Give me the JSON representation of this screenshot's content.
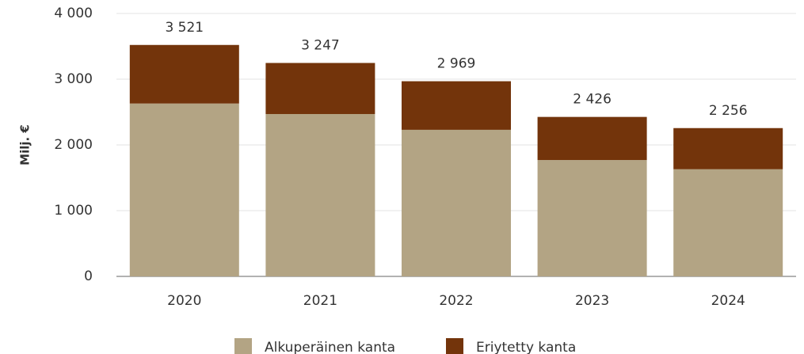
{
  "chart_data": {
    "type": "stacked_bar",
    "y_label": "Milj. €",
    "categories": [
      "2020",
      "2021",
      "2022",
      "2023",
      "2024"
    ],
    "series": [
      {
        "name": "Alkuperäinen kanta",
        "color": "#b3a484",
        "values": [
          2630,
          2470,
          2230,
          1770,
          1630
        ]
      },
      {
        "name": "Eriytetty kanta",
        "color": "#73340b",
        "values": [
          891,
          777,
          739,
          656,
          626
        ]
      }
    ],
    "totals": [
      3521,
      3247,
      2969,
      2426,
      2256
    ],
    "total_labels": [
      "3 521",
      "3 247",
      "2 969",
      "2 426",
      "2 256"
    ],
    "ylim": [
      0,
      4000
    ],
    "yticks": [
      0,
      {
        "value": 1000,
        "label": "1 000"
      },
      {
        "value": 2000,
        "label": "2 000"
      },
      {
        "value": 3000,
        "label": "3 000"
      },
      {
        "value": 4000,
        "label": "4 000"
      }
    ],
    "grid": true,
    "legend": "bottom"
  }
}
